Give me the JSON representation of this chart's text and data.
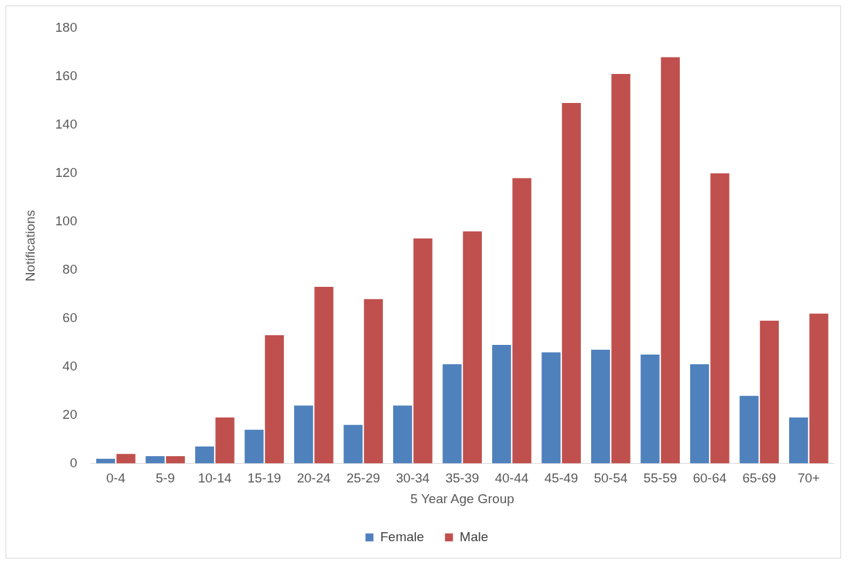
{
  "chart_data": {
    "type": "bar",
    "xlabel": "5 Year Age Group",
    "ylabel": "Notifications",
    "categories": [
      "0-4",
      "5-9",
      "10-14",
      "15-19",
      "20-24",
      "25-29",
      "30-34",
      "35-39",
      "40-44",
      "45-49",
      "50-54",
      "55-59",
      "60-64",
      "65-69",
      "70+"
    ],
    "series": [
      {
        "name": "Female",
        "color": "#4f81bd",
        "values": [
          2,
          3,
          7,
          14,
          24,
          16,
          24,
          41,
          49,
          46,
          47,
          45,
          41,
          28,
          19
        ]
      },
      {
        "name": "Male",
        "color": "#c0504d",
        "values": [
          4,
          3,
          19,
          53,
          73,
          68,
          93,
          96,
          118,
          149,
          161,
          168,
          120,
          59,
          62
        ]
      }
    ],
    "ylim": [
      0,
      180
    ],
    "yticks": [
      0,
      20,
      40,
      60,
      80,
      100,
      120,
      140,
      160,
      180
    ],
    "grid": false,
    "legend": "bottom"
  }
}
